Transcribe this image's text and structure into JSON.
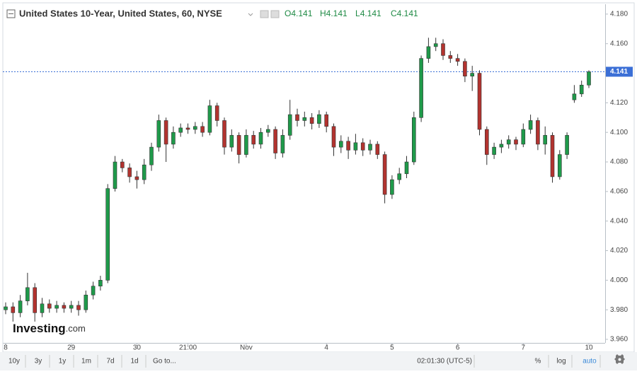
{
  "chart_data": {
    "type": "candlestick",
    "title": "United States 10-Year, United States, 60, NYSE",
    "ohlc_legend": [
      {
        "label": "O",
        "value": 4.141
      },
      {
        "label": "H",
        "value": 4.141
      },
      {
        "label": "L",
        "value": 4.141
      },
      {
        "label": "C",
        "value": 4.141
      }
    ],
    "watermark": {
      "brand": "Investing",
      "suffix": ".com"
    },
    "last_price": 4.141,
    "up_color": "#1f9a4a",
    "down_color": "#b2332f",
    "categories": [
      "8",
      null,
      null,
      null,
      null,
      null,
      null,
      null,
      null,
      "29",
      null,
      null,
      null,
      null,
      null,
      null,
      null,
      null,
      "30",
      null,
      null,
      null,
      null,
      null,
      null,
      "21:00",
      null,
      null,
      null,
      null,
      null,
      null,
      null,
      "Nov",
      null,
      null,
      null,
      null,
      null,
      null,
      null,
      null,
      null,
      null,
      "4",
      null,
      null,
      null,
      null,
      null,
      null,
      null,
      null,
      "5",
      null,
      null,
      null,
      null,
      null,
      null,
      null,
      null,
      "6",
      null,
      null,
      null,
      null,
      null,
      null,
      null,
      null,
      "7",
      null,
      null,
      null,
      null,
      null,
      null,
      null,
      null,
      "10"
    ],
    "open": [
      3.98,
      3.982,
      3.978,
      3.986,
      3.995,
      3.978,
      3.984,
      3.981,
      3.983,
      3.981,
      3.983,
      3.98,
      3.99,
      3.996,
      4.0,
      4.062,
      4.08,
      4.076,
      4.07,
      4.068,
      4.078,
      4.09,
      4.108,
      4.092,
      4.1,
      4.103,
      4.102,
      4.104,
      4.1,
      4.118,
      4.108,
      4.09,
      4.098,
      4.085,
      4.098,
      4.092,
      4.1,
      4.102,
      4.086,
      4.098,
      4.112,
      4.108,
      4.11,
      4.106,
      4.112,
      4.104,
      4.09,
      4.094,
      4.088,
      4.093,
      4.088,
      4.092,
      4.085,
      4.058,
      4.068,
      4.072,
      4.08,
      4.11,
      4.15,
      4.158,
      4.16,
      4.152,
      4.15,
      4.148,
      4.138,
      4.14,
      4.102,
      4.085,
      4.09,
      4.092,
      4.095,
      4.092,
      4.102,
      4.108,
      4.092,
      4.098,
      4.07,
      4.085,
      4.122,
      4.126,
      4.132
    ],
    "high": [
      3.985,
      3.985,
      3.99,
      4.005,
      3.998,
      3.988,
      3.987,
      3.986,
      3.985,
      3.986,
      3.986,
      3.993,
      3.999,
      4.003,
      4.065,
      4.084,
      4.082,
      4.079,
      4.074,
      4.082,
      4.093,
      4.112,
      4.11,
      4.104,
      4.106,
      4.106,
      4.107,
      4.107,
      4.122,
      4.12,
      4.11,
      4.102,
      4.1,
      4.102,
      4.101,
      4.103,
      4.105,
      4.104,
      4.102,
      4.122,
      4.116,
      4.114,
      4.113,
      4.115,
      4.114,
      4.106,
      4.098,
      4.097,
      4.099,
      4.096,
      4.095,
      4.094,
      4.087,
      4.071,
      4.076,
      4.084,
      4.114,
      4.152,
      4.164,
      4.164,
      4.163,
      4.155,
      4.153,
      4.15,
      4.145,
      4.142,
      4.104,
      4.093,
      4.095,
      4.098,
      4.097,
      4.106,
      4.112,
      4.11,
      4.104,
      4.1,
      4.088,
      4.1,
      4.132,
      4.135,
      4.142
    ],
    "low": [
      3.977,
      3.972,
      3.975,
      3.983,
      3.972,
      3.975,
      3.978,
      3.978,
      3.978,
      3.978,
      3.976,
      3.978,
      3.987,
      3.993,
      3.998,
      4.06,
      4.073,
      4.066,
      4.062,
      4.065,
      4.074,
      4.087,
      4.08,
      4.089,
      4.097,
      4.099,
      4.099,
      4.097,
      4.098,
      4.104,
      4.085,
      4.087,
      4.079,
      4.083,
      4.089,
      4.089,
      4.097,
      4.082,
      4.083,
      4.095,
      4.104,
      4.104,
      4.102,
      4.103,
      4.1,
      4.084,
      4.086,
      4.082,
      4.085,
      4.084,
      4.085,
      4.082,
      4.052,
      4.055,
      4.065,
      4.069,
      4.078,
      4.107,
      4.147,
      4.155,
      4.149,
      4.147,
      4.145,
      4.134,
      4.128,
      4.098,
      4.078,
      4.082,
      4.086,
      4.089,
      4.088,
      4.09,
      4.099,
      4.088,
      4.085,
      4.066,
      4.068,
      4.082,
      4.12,
      4.124,
      4.13
    ],
    "close": [
      3.982,
      3.978,
      3.986,
      3.995,
      3.978,
      3.984,
      3.981,
      3.983,
      3.981,
      3.983,
      3.98,
      3.99,
      3.996,
      4.0,
      4.062,
      4.08,
      4.076,
      4.07,
      4.068,
      4.078,
      4.09,
      4.108,
      4.092,
      4.1,
      4.103,
      4.102,
      4.104,
      4.1,
      4.118,
      4.108,
      4.09,
      4.098,
      4.085,
      4.098,
      4.092,
      4.1,
      4.102,
      4.086,
      4.098,
      4.112,
      4.108,
      4.11,
      4.106,
      4.112,
      4.104,
      4.09,
      4.094,
      4.088,
      4.093,
      4.088,
      4.092,
      4.085,
      4.058,
      4.068,
      4.072,
      4.08,
      4.11,
      4.15,
      4.158,
      4.16,
      4.152,
      4.15,
      4.148,
      4.138,
      4.14,
      4.102,
      4.085,
      4.09,
      4.092,
      4.095,
      4.092,
      4.102,
      4.108,
      4.092,
      4.098,
      4.07,
      4.085,
      4.098,
      4.126,
      4.132,
      4.141
    ],
    "ylim": [
      3.9576,
      4.1857
    ],
    "yticks": [
      {
        "value": 3.96,
        "label": "3.960"
      },
      {
        "value": 3.98,
        "label": "3.980"
      },
      {
        "value": 4.0,
        "label": "4.000"
      },
      {
        "value": 4.02,
        "label": "4.020"
      },
      {
        "value": 4.04,
        "label": "4.040"
      },
      {
        "value": 4.06,
        "label": "4.060"
      },
      {
        "value": 4.08,
        "label": "4.080"
      },
      {
        "value": 4.1,
        "label": "4.100"
      },
      {
        "value": 4.12,
        "label": "4.120"
      },
      {
        "value": 4.14,
        "label": "4.140"
      },
      {
        "value": 4.16,
        "label": "4.160"
      },
      {
        "value": 4.18,
        "label": "4.180"
      }
    ],
    "grid": false
  },
  "toolbar": {
    "ranges": [
      "10y",
      "3y",
      "1y",
      "1m",
      "7d",
      "1d"
    ],
    "goto": "Go to...",
    "clock": "02:01:30 (UTC-5)",
    "options": [
      "%",
      "log",
      "auto"
    ]
  }
}
